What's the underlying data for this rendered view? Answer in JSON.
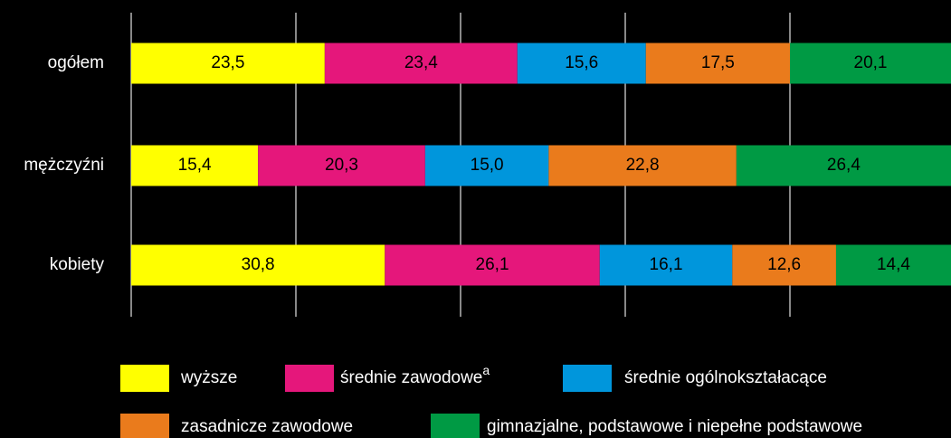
{
  "chart_data": {
    "type": "stacked-bar-horizontal",
    "categories": [
      "ogółem",
      "mężczyźni",
      "kobiety"
    ],
    "series": [
      {
        "name": "wyższe",
        "color": "#ffff00",
        "values": [
          23.5,
          15.4,
          30.8
        ],
        "value_labels": [
          "23,5",
          "15,4",
          "30,8"
        ]
      },
      {
        "name": "średnie zawodowe",
        "superscript": "a",
        "color": "#e5177b",
        "values": [
          23.4,
          20.3,
          26.1
        ],
        "value_labels": [
          "23,4",
          "20,3",
          "26,1"
        ]
      },
      {
        "name": "średnie ogólnokształacące",
        "color": "#0096dc",
        "values": [
          15.6,
          15.0,
          16.1
        ],
        "value_labels": [
          "15,6",
          "15,0",
          "16,1"
        ]
      },
      {
        "name": "zasadnicze zawodowe",
        "color": "#ea7b1c",
        "values": [
          17.5,
          22.8,
          12.6
        ],
        "value_labels": [
          "17,5",
          "22,8",
          "12,6"
        ]
      },
      {
        "name": "gimnazjalne, podstawowe i niepełne podstawowe",
        "color": "#009a44",
        "values": [
          20.1,
          26.4,
          14.4
        ],
        "value_labels": [
          "20,1",
          "26,4",
          "14,4"
        ]
      }
    ],
    "xlim": [
      0,
      100
    ],
    "xticks": [
      0,
      20,
      40,
      60,
      80,
      100
    ],
    "grid": true
  }
}
